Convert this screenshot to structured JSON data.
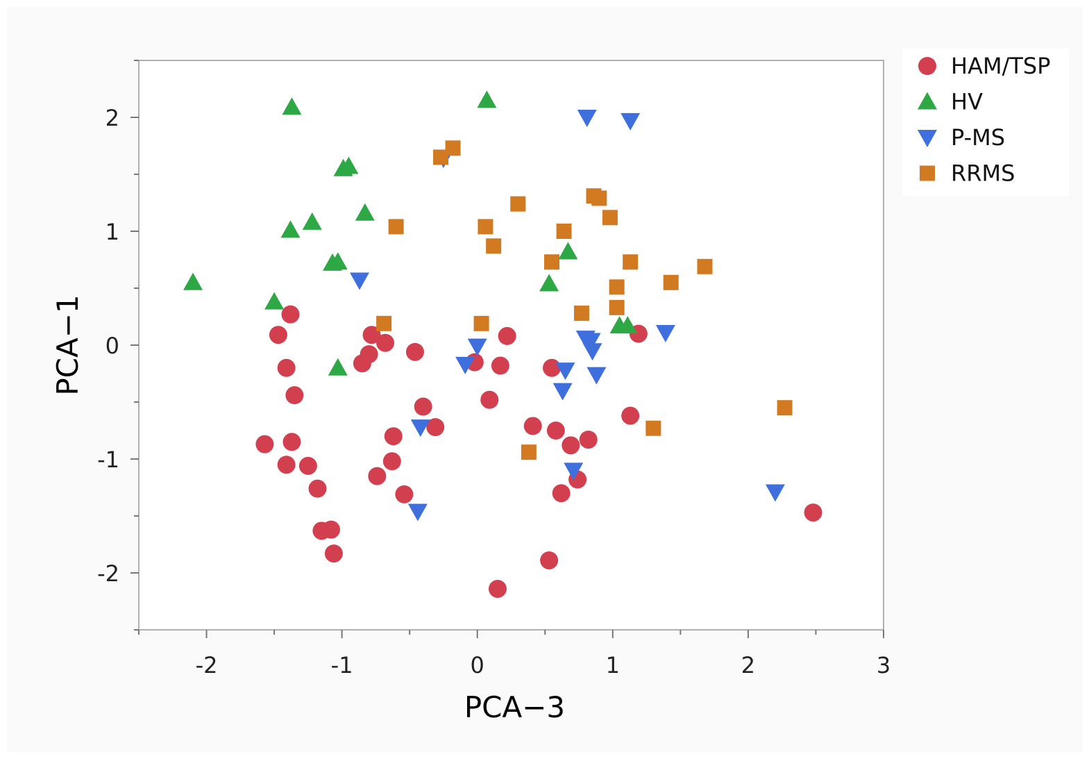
{
  "chart_data": {
    "type": "scatter",
    "xlabel": "PCA−3",
    "ylabel": "PCA−1",
    "xlim": [
      -2.5,
      3
    ],
    "ylim": [
      -2.5,
      2.5
    ],
    "xticks": [
      -2,
      -1,
      0,
      1,
      2,
      3
    ],
    "yticks": [
      -2,
      -1,
      0,
      1,
      2
    ],
    "xtick_labels": [
      "-2",
      "-1",
      "0",
      "1",
      "2",
      "3"
    ],
    "ytick_labels": [
      "-2",
      "-1",
      "0",
      "1",
      "2"
    ],
    "grid": false,
    "legend_position": "top-right outside",
    "series": [
      {
        "name": "HAM/TSP",
        "marker": "circle",
        "color": "#d2404f",
        "points": [
          [
            -1.38,
            0.27
          ],
          [
            -1.47,
            0.09
          ],
          [
            -1.41,
            -0.2
          ],
          [
            -1.35,
            -0.44
          ],
          [
            -1.37,
            -0.85
          ],
          [
            -1.57,
            -0.87
          ],
          [
            -1.41,
            -1.05
          ],
          [
            -1.25,
            -1.06
          ],
          [
            -1.18,
            -1.26
          ],
          [
            -1.15,
            -1.63
          ],
          [
            -1.08,
            -1.62
          ],
          [
            -1.06,
            -1.83
          ],
          [
            -0.78,
            0.09
          ],
          [
            -0.68,
            0.02
          ],
          [
            -0.8,
            -0.08
          ],
          [
            -0.85,
            -0.16
          ],
          [
            -0.46,
            -0.06
          ],
          [
            -0.4,
            -0.54
          ],
          [
            -0.31,
            -0.72
          ],
          [
            -0.62,
            -0.8
          ],
          [
            -0.63,
            -1.02
          ],
          [
            -0.74,
            -1.15
          ],
          [
            -0.54,
            -1.31
          ],
          [
            0.09,
            -0.48
          ],
          [
            -0.02,
            -0.15
          ],
          [
            0.17,
            -0.18
          ],
          [
            0.22,
            0.08
          ],
          [
            0.55,
            -0.2
          ],
          [
            0.41,
            -0.71
          ],
          [
            0.58,
            -0.75
          ],
          [
            0.69,
            -0.88
          ],
          [
            0.82,
            -0.83
          ],
          [
            0.74,
            -1.18
          ],
          [
            0.62,
            -1.3
          ],
          [
            0.53,
            -1.89
          ],
          [
            0.15,
            -2.14
          ],
          [
            1.13,
            -0.62
          ],
          [
            1.19,
            0.1
          ],
          [
            2.48,
            -1.47
          ]
        ]
      },
      {
        "name": "HV",
        "marker": "triangle-up",
        "color": "#2ea844",
        "points": [
          [
            -2.1,
            0.55
          ],
          [
            -1.37,
            2.09
          ],
          [
            -1.38,
            1.01
          ],
          [
            -1.22,
            1.08
          ],
          [
            -0.99,
            1.55
          ],
          [
            -0.95,
            1.57
          ],
          [
            -0.83,
            1.16
          ],
          [
            -1.07,
            0.72
          ],
          [
            -1.03,
            0.73
          ],
          [
            -1.5,
            0.38
          ],
          [
            -1.03,
            -0.2
          ],
          [
            0.07,
            2.15
          ],
          [
            0.67,
            0.82
          ],
          [
            0.53,
            0.54
          ],
          [
            1.05,
            0.17
          ],
          [
            1.11,
            0.17
          ]
        ]
      },
      {
        "name": "P-MS",
        "marker": "triangle-down",
        "color": "#3f6fdc",
        "points": [
          [
            -0.25,
            1.64
          ],
          [
            -0.87,
            0.57
          ],
          [
            0.81,
            2.0
          ],
          [
            1.13,
            1.97
          ],
          [
            -0.09,
            -0.17
          ],
          [
            0.0,
            -0.01
          ],
          [
            0.8,
            0.06
          ],
          [
            0.84,
            0.04
          ],
          [
            0.85,
            -0.05
          ],
          [
            0.88,
            -0.26
          ],
          [
            0.65,
            -0.22
          ],
          [
            0.63,
            -0.4
          ],
          [
            1.39,
            0.11
          ],
          [
            -0.42,
            -0.72
          ],
          [
            -0.44,
            -1.46
          ],
          [
            0.71,
            -1.1
          ],
          [
            2.2,
            -1.29
          ]
        ]
      },
      {
        "name": "RRMS",
        "marker": "square",
        "color": "#d27a21",
        "points": [
          [
            -0.27,
            1.65
          ],
          [
            -0.18,
            1.73
          ],
          [
            -0.6,
            1.04
          ],
          [
            0.06,
            1.04
          ],
          [
            0.12,
            0.87
          ],
          [
            0.3,
            1.24
          ],
          [
            0.64,
            1.0
          ],
          [
            0.86,
            1.31
          ],
          [
            0.9,
            1.29
          ],
          [
            0.98,
            1.12
          ],
          [
            0.55,
            0.73
          ],
          [
            1.13,
            0.73
          ],
          [
            1.03,
            0.51
          ],
          [
            1.43,
            0.55
          ],
          [
            1.68,
            0.69
          ],
          [
            0.77,
            0.28
          ],
          [
            1.03,
            0.33
          ],
          [
            -0.69,
            0.19
          ],
          [
            0.03,
            0.19
          ],
          [
            0.38,
            -0.94
          ],
          [
            1.3,
            -0.73
          ],
          [
            2.27,
            -0.55
          ]
        ]
      }
    ]
  }
}
